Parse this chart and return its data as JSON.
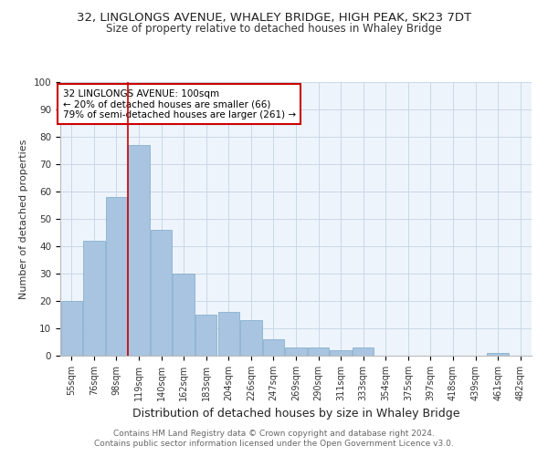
{
  "title": "32, LINGLONGS AVENUE, WHALEY BRIDGE, HIGH PEAK, SK23 7DT",
  "subtitle": "Size of property relative to detached houses in Whaley Bridge",
  "xlabel": "Distribution of detached houses by size in Whaley Bridge",
  "ylabel": "Number of detached properties",
  "categories": [
    "55sqm",
    "76sqm",
    "98sqm",
    "119sqm",
    "140sqm",
    "162sqm",
    "183sqm",
    "204sqm",
    "226sqm",
    "247sqm",
    "269sqm",
    "290sqm",
    "311sqm",
    "333sqm",
    "354sqm",
    "375sqm",
    "397sqm",
    "418sqm",
    "439sqm",
    "461sqm",
    "482sqm"
  ],
  "values": [
    20,
    42,
    58,
    77,
    46,
    30,
    15,
    16,
    13,
    6,
    3,
    3,
    2,
    3,
    0,
    0,
    0,
    0,
    0,
    1,
    0
  ],
  "bar_color": "#a8c4e0",
  "bar_edgecolor": "#7aaac8",
  "property_line_x": 2.5,
  "annotation_text": "32 LINGLONGS AVENUE: 100sqm\n← 20% of detached houses are smaller (66)\n79% of semi-detached houses are larger (261) →",
  "annotation_box_color": "#ffffff",
  "annotation_box_edgecolor": "#cc0000",
  "ylim": [
    0,
    100
  ],
  "yticks": [
    0,
    10,
    20,
    30,
    40,
    50,
    60,
    70,
    80,
    90,
    100
  ],
  "grid_color": "#c8d8e8",
  "background_color": "#eef4fb",
  "footer_line1": "Contains HM Land Registry data © Crown copyright and database right 2024.",
  "footer_line2": "Contains public sector information licensed under the Open Government Licence v3.0.",
  "title_fontsize": 9.5,
  "subtitle_fontsize": 8.5,
  "xlabel_fontsize": 9,
  "ylabel_fontsize": 8,
  "tick_fontsize": 7,
  "annotation_fontsize": 7.5,
  "footer_fontsize": 6.5
}
